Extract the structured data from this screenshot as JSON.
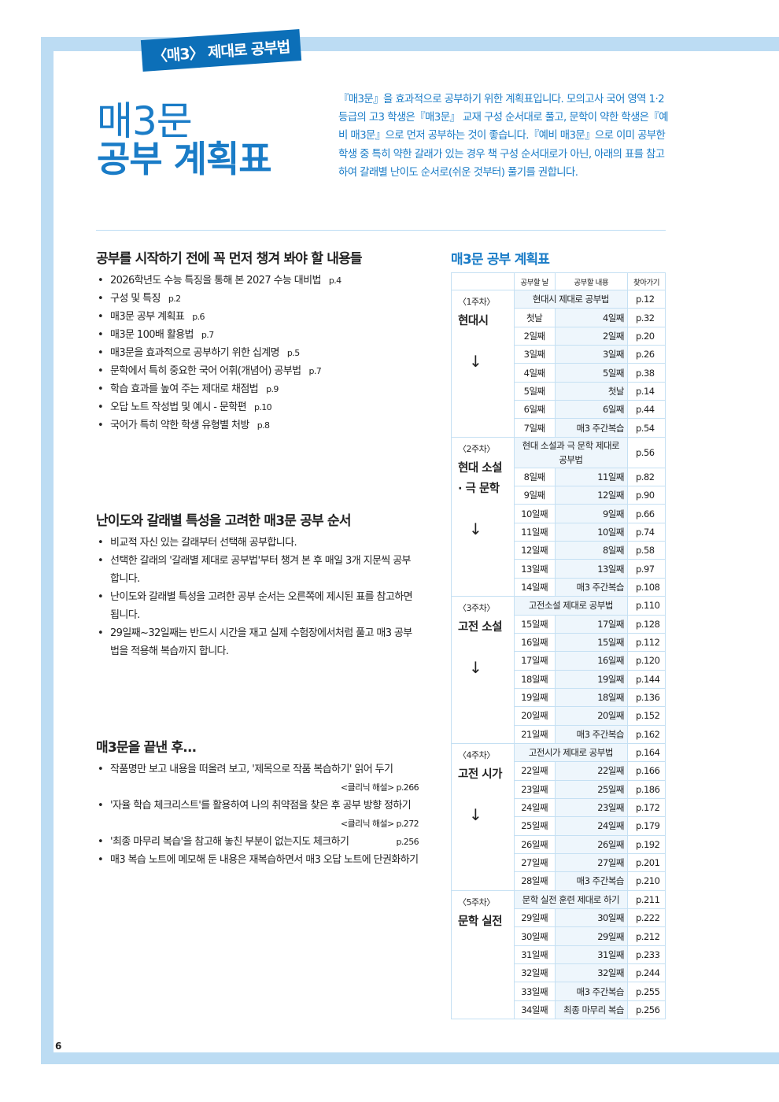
{
  "header": {
    "tag": "〈매3〉 제대로 공부법",
    "title_line1": "매3문",
    "title_line2": "공부 계획표",
    "intro": "『매3문』을 효과적으로 공부하기 위한 계획표입니다. 모의고사 국어 영역 1·2등급의 고3 학생은『매3문』 교재 구성 순서대로 풀고, 문학이 약한 학생은『예비 매3문』으로 먼저 공부하는 것이 좋습니다.『예비 매3문』으로 이미 공부한 학생 중 특히 약한 갈래가 있는 경우 책 구성 순서대로가 아닌, 아래의 표를 참고하여 갈래별 난이도 순서로(쉬운 것부터) 풀기를 권합니다."
  },
  "sections": [
    {
      "title": "공부를 시작하기 전에 꼭 먼저 챙겨 봐야 할 내용들",
      "items": [
        {
          "text": "2026학년도 수능 특징을 통해 본 2027 수능 대비법",
          "page": "p.4"
        },
        {
          "text": "구성 및 특징",
          "page": "p.2"
        },
        {
          "text": "매3문 공부 계획표",
          "page": "p.6"
        },
        {
          "text": "매3문 100배 활용법",
          "page": "p.7"
        },
        {
          "text": "매3문을 효과적으로 공부하기 위한 십계명",
          "page": "p.5"
        },
        {
          "text": "문학에서 특히 중요한 국어 어휘(개념어) 공부법",
          "page": "p.7"
        },
        {
          "text": "학습 효과를 높여 주는 제대로 채점법",
          "page": "p.9"
        },
        {
          "text": "오답 노트 작성법 및 예시 - 문학편",
          "page": "p.10"
        },
        {
          "text": "국어가 특히 약한 학생 유형별 처방",
          "page": "p.8"
        }
      ]
    },
    {
      "title": "난이도와 갈래별 특성을 고려한 매3문 공부 순서",
      "items": [
        {
          "text": "비교적 자신 있는 갈래부터 선택해 공부합니다."
        },
        {
          "text": "선택한 갈래의 '갈래별 제대로 공부법'부터 챙겨 본 후 매일 3개 지문씩 공부합니다."
        },
        {
          "text": "난이도와 갈래별 특성을 고려한 공부 순서는 오른쪽에 제시된 표를 참고하면 됩니다."
        },
        {
          "text": "29일째~32일째는 반드시 시간을 재고 실제 수험장에서처럼 풀고 매3 공부법을 적용해 복습까지 합니다."
        }
      ]
    },
    {
      "title": "매3문을 끝낸 후...",
      "items": [
        {
          "text": "작품명만 보고 내용을 떠올려 보고, '제목으로 작품 복습하기' 읽어 두기",
          "ref": "<클리닉 해설> p.266"
        },
        {
          "text": "'자율 학습 체크리스트'를 활용하여 나의 취약점을 찾은 후 공부 방향 정하기",
          "ref": "<클리닉 해설> p.272"
        },
        {
          "text": "'최종 마무리 복습'을 참고해 놓친 부분이 없는지도 체크하기",
          "ref": "p.256"
        },
        {
          "text": "매3 복습 노트에 메모해 둔 내용은 재복습하면서 매3 오답 노트에 단권화하기"
        }
      ]
    }
  ],
  "plan": {
    "title": "매3문 공부 계획표",
    "headers": [
      "",
      "공부할 날",
      "공부할 내용",
      "찾아가기"
    ],
    "weeks": [
      {
        "label": "〈1주차〉",
        "name": "현대시",
        "arrow": "↓",
        "sub": "현대시 제대로 공부법",
        "sub_page": "p.12",
        "rows": [
          [
            "첫날",
            "4일째",
            "p.32"
          ],
          [
            "2일째",
            "2일째",
            "p.20"
          ],
          [
            "3일째",
            "3일째",
            "p.26"
          ],
          [
            "4일째",
            "5일째",
            "p.38"
          ],
          [
            "5일째",
            "첫날",
            "p.14"
          ],
          [
            "6일째",
            "6일째",
            "p.44"
          ],
          [
            "7일째",
            "매3 주간복습",
            "p.54"
          ]
        ]
      },
      {
        "label": "〈2주차〉",
        "name": "현대 소설 · 극 문학",
        "arrow": "↓",
        "sub": "현대 소설과 극 문학 제대로 공부법",
        "sub_page": "p.56",
        "rows": [
          [
            "8일째",
            "11일째",
            "p.82"
          ],
          [
            "9일째",
            "12일째",
            "p.90"
          ],
          [
            "10일째",
            "9일째",
            "p.66"
          ],
          [
            "11일째",
            "10일째",
            "p.74"
          ],
          [
            "12일째",
            "8일째",
            "p.58"
          ],
          [
            "13일째",
            "13일째",
            "p.97"
          ],
          [
            "14일째",
            "매3 주간복습",
            "p.108"
          ]
        ]
      },
      {
        "label": "〈3주차〉",
        "name": "고전 소설",
        "arrow": "↓",
        "sub": "고전소설 제대로 공부법",
        "sub_page": "p.110",
        "rows": [
          [
            "15일째",
            "17일째",
            "p.128"
          ],
          [
            "16일째",
            "15일째",
            "p.112"
          ],
          [
            "17일째",
            "16일째",
            "p.120"
          ],
          [
            "18일째",
            "19일째",
            "p.144"
          ],
          [
            "19일째",
            "18일째",
            "p.136"
          ],
          [
            "20일째",
            "20일째",
            "p.152"
          ],
          [
            "21일째",
            "매3 주간복습",
            "p.162"
          ]
        ]
      },
      {
        "label": "〈4주차〉",
        "name": "고전 시가",
        "arrow": "↓",
        "sub": "고전시가 제대로 공부법",
        "sub_page": "p.164",
        "rows": [
          [
            "22일째",
            "22일째",
            "p.166"
          ],
          [
            "23일째",
            "25일째",
            "p.186"
          ],
          [
            "24일째",
            "23일째",
            "p.172"
          ],
          [
            "25일째",
            "24일째",
            "p.179"
          ],
          [
            "26일째",
            "26일째",
            "p.192"
          ],
          [
            "27일째",
            "27일째",
            "p.201"
          ],
          [
            "28일째",
            "매3 주간복습",
            "p.210"
          ]
        ]
      },
      {
        "label": "〈5주차〉",
        "name": "문학 실전",
        "arrow": "",
        "sub": "문학 실전 훈련 제대로 하기",
        "sub_page": "p.211",
        "rows": [
          [
            "29일째",
            "30일째",
            "p.222"
          ],
          [
            "30일째",
            "29일째",
            "p.212"
          ],
          [
            "31일째",
            "31일째",
            "p.233"
          ],
          [
            "32일째",
            "32일째",
            "p.244"
          ],
          [
            "33일째",
            "매3 주간복습",
            "p.255"
          ],
          [
            "34일째",
            "최종 마무리 복습",
            "p.256"
          ]
        ]
      }
    ]
  },
  "page_number": "6",
  "colors": {
    "accent": "#1a7cc7",
    "band": "#bcdcf3",
    "tag": "#0c6fb8"
  }
}
